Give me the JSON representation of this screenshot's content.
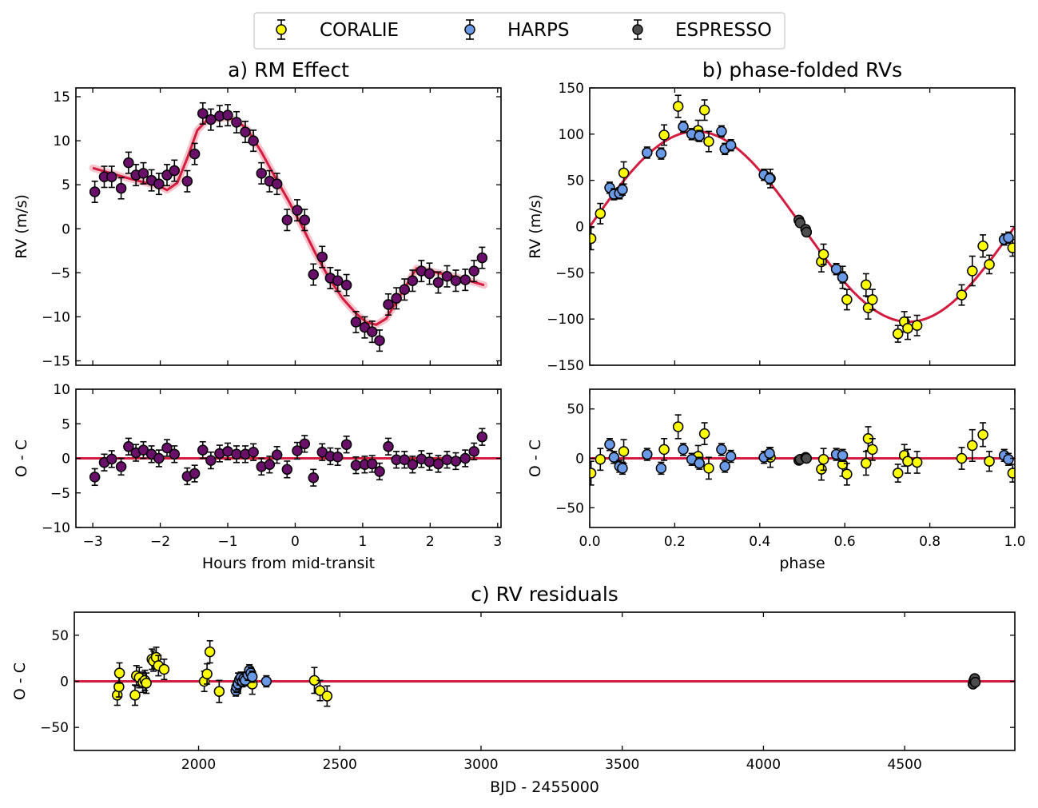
{
  "legend": {
    "items": [
      {
        "label": "CORALIE",
        "color": "#ffff00"
      },
      {
        "label": "HARPS",
        "color": "#6a9ae6"
      },
      {
        "label": "ESPRESSO",
        "color": "#4d4d4d"
      }
    ]
  },
  "colors": {
    "model": "#d31c3f",
    "rm_points": "#6a0f6a",
    "edge": "#000000"
  },
  "chart_data": [
    {
      "id": "rm",
      "type": "scatter",
      "title": "a) RM Effect",
      "xlabel": "",
      "ylabel": "RV (m/s)",
      "xlim": [
        -3.25,
        3.05
      ],
      "ylim": [
        -15.5,
        16
      ],
      "xticks": [
        -3,
        -2,
        -1,
        0,
        1,
        2,
        3
      ],
      "yticks": [
        -15,
        -10,
        -5,
        0,
        5,
        10,
        15
      ],
      "ytick_labels": [
        "−15",
        "−10",
        "−5",
        "0",
        "5",
        "10",
        "15"
      ],
      "series": [
        {
          "name": "RM data",
          "color": "#6a0f6a",
          "x": [
            -2.97,
            -2.83,
            -2.72,
            -2.58,
            -2.47,
            -2.36,
            -2.25,
            -2.13,
            -2.02,
            -1.9,
            -1.79,
            -1.6,
            -1.49,
            -1.37,
            -1.25,
            -1.12,
            -1.0,
            -0.87,
            -0.74,
            -0.62,
            -0.5,
            -0.38,
            -0.27,
            -0.12,
            0.03,
            0.14,
            0.27,
            0.4,
            0.52,
            0.63,
            0.76,
            0.9,
            1.03,
            1.14,
            1.25,
            1.38,
            1.5,
            1.62,
            1.74,
            1.87,
            1.99,
            2.12,
            2.25,
            2.38,
            2.52,
            2.65,
            2.77
          ],
          "y": [
            4.2,
            5.9,
            5.9,
            4.6,
            7.5,
            6.1,
            6.3,
            5.5,
            5.1,
            6.1,
            6.6,
            5.4,
            8.5,
            13.1,
            12.4,
            12.8,
            12.9,
            12.1,
            11.0,
            10.0,
            6.3,
            5.4,
            5.1,
            1.0,
            2.1,
            1.0,
            -5.2,
            -3.2,
            -5.6,
            -5.9,
            -6.4,
            -10.6,
            -11.2,
            -11.7,
            -12.7,
            -8.6,
            -7.9,
            -6.9,
            -5.9,
            -4.8,
            -5.1,
            -6.1,
            -5.4,
            -5.9,
            -5.8,
            -4.8,
            -3.3
          ],
          "yerr": [
            1.2,
            1.2,
            1.2,
            1.2,
            1.2,
            1.2,
            1.2,
            1.2,
            1.2,
            1.2,
            1.2,
            1.2,
            1.2,
            1.2,
            1.2,
            1.2,
            1.2,
            1.2,
            1.2,
            1.2,
            1.2,
            1.2,
            1.2,
            1.2,
            1.2,
            1.2,
            1.2,
            1.2,
            1.2,
            1.2,
            1.2,
            1.2,
            1.2,
            1.2,
            1.2,
            1.2,
            1.2,
            1.2,
            1.2,
            1.2,
            1.2,
            1.2,
            1.2,
            1.2,
            1.2,
            1.2,
            1.2
          ]
        },
        {
          "name": "RM model",
          "type": "line",
          "color": "#d31c3f",
          "x": [
            -3.0,
            -2.5,
            -2.0,
            -1.9,
            -1.75,
            -1.6,
            -1.45,
            -1.3,
            -1.15,
            -1.0,
            -0.85,
            -0.7,
            -0.5,
            -0.3,
            -0.1,
            0.1,
            0.3,
            0.5,
            0.7,
            0.9,
            1.05,
            1.2,
            1.35,
            1.5,
            1.6,
            1.75,
            1.8,
            2.0,
            2.4,
            2.8
          ],
          "y": [
            6.9,
            5.8,
            4.8,
            4.4,
            5.2,
            8.0,
            11.2,
            12.4,
            12.5,
            12.6,
            12.2,
            11.2,
            8.7,
            5.9,
            3.2,
            0.3,
            -2.8,
            -5.6,
            -7.9,
            -9.6,
            -10.6,
            -10.9,
            -10.2,
            -8.3,
            -7.0,
            -5.1,
            -4.5,
            -4.8,
            -5.5,
            -6.4
          ]
        }
      ]
    },
    {
      "id": "rm_resid",
      "type": "scatter",
      "title": "",
      "xlabel": "Hours from mid-transit",
      "ylabel": "O - C",
      "xlim": [
        -3.25,
        3.05
      ],
      "ylim": [
        -10,
        10
      ],
      "xticks": [
        -3,
        -2,
        -1,
        0,
        1,
        2,
        3
      ],
      "xtick_labels": [
        "−3",
        "−2",
        "−1",
        "0",
        "1",
        "2",
        "3"
      ],
      "yticks": [
        -10,
        -5,
        0,
        5,
        10
      ],
      "ytick_labels": [
        "−10",
        "−5",
        "0",
        "5",
        "10"
      ],
      "series": [
        {
          "name": "RM residuals",
          "color": "#6a0f6a",
          "x": [
            -2.97,
            -2.83,
            -2.72,
            -2.58,
            -2.47,
            -2.36,
            -2.25,
            -2.13,
            -2.02,
            -1.9,
            -1.79,
            -1.6,
            -1.49,
            -1.37,
            -1.25,
            -1.12,
            -1.0,
            -0.87,
            -0.74,
            -0.62,
            -0.5,
            -0.38,
            -0.27,
            -0.12,
            0.03,
            0.14,
            0.27,
            0.4,
            0.52,
            0.63,
            0.76,
            0.9,
            1.03,
            1.14,
            1.25,
            1.38,
            1.5,
            1.62,
            1.74,
            1.87,
            1.99,
            2.12,
            2.25,
            2.38,
            2.52,
            2.65,
            2.77
          ],
          "y": [
            -2.7,
            -0.6,
            -0.1,
            -1.2,
            1.7,
            0.8,
            1.2,
            0.6,
            0.0,
            1.5,
            0.6,
            -2.6,
            -2.2,
            1.2,
            -0.3,
            0.7,
            1.0,
            0.6,
            0.6,
            0.9,
            -1.2,
            -0.9,
            0.5,
            -1.6,
            1.1,
            2.1,
            -2.8,
            0.9,
            0.3,
            0.2,
            2.0,
            -1.0,
            -0.9,
            -0.8,
            -1.9,
            1.7,
            -0.2,
            -0.2,
            -0.9,
            -0.1,
            -0.5,
            -0.8,
            -0.2,
            -0.4,
            0.0,
            1.0,
            3.1
          ],
          "yerr": [
            1.2,
            1.2,
            1.2,
            1.2,
            1.2,
            1.2,
            1.2,
            1.2,
            1.2,
            1.2,
            1.2,
            1.2,
            1.2,
            1.2,
            1.2,
            1.2,
            1.2,
            1.2,
            1.2,
            1.2,
            1.2,
            1.2,
            1.2,
            1.2,
            1.2,
            1.2,
            1.2,
            1.2,
            1.2,
            1.2,
            1.2,
            1.2,
            1.2,
            1.2,
            1.2,
            1.2,
            1.2,
            1.2,
            1.2,
            1.2,
            1.2,
            1.2,
            1.2,
            1.2,
            1.2,
            1.2,
            1.2
          ]
        },
        {
          "name": "zero line",
          "type": "line",
          "color": "#d31c3f",
          "x": [
            -3.25,
            3.05
          ],
          "y": [
            0,
            0
          ]
        }
      ]
    },
    {
      "id": "phase",
      "type": "scatter",
      "title": "b) phase-folded RVs",
      "xlabel": "",
      "ylabel": "RV (m/s)",
      "xlim": [
        0,
        1
      ],
      "ylim": [
        -150,
        150
      ],
      "xticks": [
        0,
        0.2,
        0.4,
        0.6,
        0.8,
        1.0
      ],
      "yticks": [
        -150,
        -100,
        -50,
        0,
        50,
        100,
        150
      ],
      "ytick_labels": [
        "−150",
        "−100",
        "−50",
        "0",
        "50",
        "100",
        "150"
      ],
      "series": [
        {
          "name": "CORALIE",
          "color": "#ffff00",
          "x": [
            0.003,
            0.025,
            0.08,
            0.175,
            0.208,
            0.255,
            0.27,
            0.28,
            0.425,
            0.545,
            0.55,
            0.595,
            0.605,
            0.65,
            0.655,
            0.665,
            0.725,
            0.74,
            0.748,
            0.77,
            0.875,
            0.9,
            0.925,
            0.94,
            0.995
          ],
          "y": [
            -13,
            14,
            58,
            99,
            130,
            104,
            126,
            92,
            52,
            -38,
            -30,
            -55,
            -79,
            -63,
            -88,
            -79,
            -116,
            -103,
            -110,
            -107,
            -74,
            -48,
            -21,
            -41,
            -23
          ],
          "yerr": [
            12,
            11,
            12,
            11,
            12,
            11,
            11,
            11,
            10,
            11,
            11,
            12,
            11,
            12,
            12,
            11,
            9,
            11,
            12,
            11,
            11,
            16,
            12,
            10,
            9
          ]
        },
        {
          "name": "HARPS",
          "color": "#6a9ae6",
          "x": [
            0.047,
            0.057,
            0.07,
            0.077,
            0.135,
            0.168,
            0.22,
            0.24,
            0.258,
            0.31,
            0.318,
            0.332,
            0.41,
            0.423,
            0.58,
            0.595,
            0.975,
            0.985
          ],
          "y": [
            42,
            35,
            36,
            40,
            80,
            79,
            108,
            100,
            98,
            103,
            84,
            88,
            56,
            52,
            -46,
            -55,
            -14,
            -12
          ],
          "yerr": [
            6,
            6,
            6,
            6,
            6,
            6,
            6,
            6,
            6,
            6,
            6,
            6,
            6,
            6,
            6,
            6,
            6,
            6
          ]
        },
        {
          "name": "ESPRESSO",
          "color": "#4d4d4d",
          "x": [
            0.492,
            0.495,
            0.508,
            0.51
          ],
          "y": [
            7,
            4,
            -3,
            -6
          ],
          "yerr": [
            2,
            2,
            2,
            2
          ]
        },
        {
          "name": "orbit model",
          "type": "line",
          "color": "#d31c3f",
          "amplitude": 103
        }
      ]
    },
    {
      "id": "phase_resid",
      "type": "scatter",
      "title": "",
      "xlabel": "phase",
      "ylabel": "O - C",
      "xlim": [
        0,
        1
      ],
      "ylim": [
        -70,
        70
      ],
      "xticks": [
        0,
        0.2,
        0.4,
        0.6,
        0.8,
        1.0
      ],
      "xtick_labels": [
        "0.0",
        "0.2",
        "0.4",
        "0.6",
        "0.8",
        "1.0"
      ],
      "yticks": [
        -50,
        0,
        50
      ],
      "ytick_labels": [
        "−50",
        "0",
        "50"
      ],
      "series": [
        {
          "name": "CORALIE",
          "color": "#ffff00",
          "x": [
            0.003,
            0.025,
            0.08,
            0.175,
            0.208,
            0.255,
            0.27,
            0.28,
            0.425,
            0.545,
            0.55,
            0.595,
            0.605,
            0.65,
            0.655,
            0.665,
            0.725,
            0.74,
            0.748,
            0.77,
            0.875,
            0.9,
            0.925,
            0.94,
            0.995
          ],
          "y": [
            -15,
            -1,
            7,
            9,
            32,
            2,
            25,
            -10,
            1,
            -11,
            -1,
            -6,
            -16,
            -5,
            20,
            9,
            -15,
            3,
            -3,
            -4,
            0,
            13,
            24,
            -3,
            -15
          ],
          "yerr": [
            12,
            11,
            12,
            11,
            12,
            11,
            11,
            11,
            10,
            11,
            11,
            12,
            11,
            12,
            12,
            11,
            9,
            11,
            12,
            11,
            11,
            16,
            12,
            10,
            9
          ]
        },
        {
          "name": "HARPS",
          "color": "#6a9ae6",
          "x": [
            0.047,
            0.057,
            0.07,
            0.077,
            0.135,
            0.168,
            0.22,
            0.24,
            0.258,
            0.31,
            0.318,
            0.332,
            0.41,
            0.423,
            0.58,
            0.595,
            0.975,
            0.985
          ],
          "y": [
            14,
            1,
            -8,
            -10,
            4,
            -10,
            9,
            -1,
            -5,
            9,
            -8,
            2,
            1,
            5,
            4,
            3,
            3,
            -1
          ],
          "yerr": [
            6,
            6,
            6,
            6,
            6,
            6,
            6,
            6,
            6,
            6,
            6,
            6,
            6,
            6,
            6,
            6,
            6,
            6
          ]
        },
        {
          "name": "ESPRESSO",
          "color": "#4d4d4d",
          "x": [
            0.492,
            0.495,
            0.508,
            0.51
          ],
          "y": [
            -2,
            -1,
            1,
            0
          ],
          "yerr": [
            2,
            2,
            2,
            2
          ]
        },
        {
          "name": "zero line",
          "type": "line",
          "color": "#d31c3f",
          "x": [
            0,
            1
          ],
          "y": [
            0,
            0
          ]
        }
      ]
    },
    {
      "id": "time_resid",
      "type": "scatter",
      "title": "c) RV residuals",
      "xlabel": "BJD - 2455000",
      "ylabel": "O - C",
      "xlim": [
        1560,
        4890
      ],
      "ylim": [
        -75,
        75
      ],
      "xticks": [
        2000,
        2500,
        3000,
        3500,
        4000,
        4500
      ],
      "yticks": [
        -50,
        0,
        50
      ],
      "ytick_labels": [
        "−50",
        "0",
        "50"
      ],
      "series": [
        {
          "name": "CORALIE",
          "color": "#ffff00",
          "x": [
            1712,
            1718,
            1720,
            1775,
            1780,
            1790,
            1803,
            1810,
            1815,
            1835,
            1840,
            1850,
            1858,
            1878,
            2020,
            2030,
            2040,
            2073,
            2140,
            2190,
            2410,
            2430,
            2455
          ],
          "y": [
            -15,
            -6,
            9,
            -15,
            6,
            4,
            -1,
            1,
            -2,
            24,
            22,
            26,
            17,
            13,
            0,
            8,
            32,
            -11,
            -2,
            -3,
            1,
            -10,
            -16
          ],
          "yerr": [
            11,
            11,
            11,
            11,
            11,
            11,
            11,
            11,
            11,
            11,
            11,
            11,
            11,
            11,
            11,
            11,
            12,
            12,
            11,
            11,
            14,
            11,
            11
          ]
        },
        {
          "name": "HARPS",
          "color": "#6a9ae6",
          "x": [
            2132,
            2135,
            2140,
            2145,
            2150,
            2155,
            2160,
            2165,
            2175,
            2180,
            2185,
            2190,
            2240
          ],
          "y": [
            -10,
            -6,
            -3,
            2,
            4,
            0,
            3,
            1,
            7,
            12,
            9,
            5,
            0
          ],
          "yerr": [
            6,
            6,
            6,
            6,
            6,
            6,
            6,
            6,
            6,
            6,
            6,
            6,
            6
          ]
        },
        {
          "name": "ESPRESSO",
          "color": "#4d4d4d",
          "x": [
            4742,
            4745,
            4748,
            4750
          ],
          "y": [
            -3,
            1,
            3,
            -1
          ],
          "yerr": [
            2,
            2,
            2,
            2
          ]
        },
        {
          "name": "zero line",
          "type": "line",
          "color": "#d31c3f",
          "x": [
            1560,
            4890
          ],
          "y": [
            0,
            0
          ]
        }
      ]
    }
  ]
}
